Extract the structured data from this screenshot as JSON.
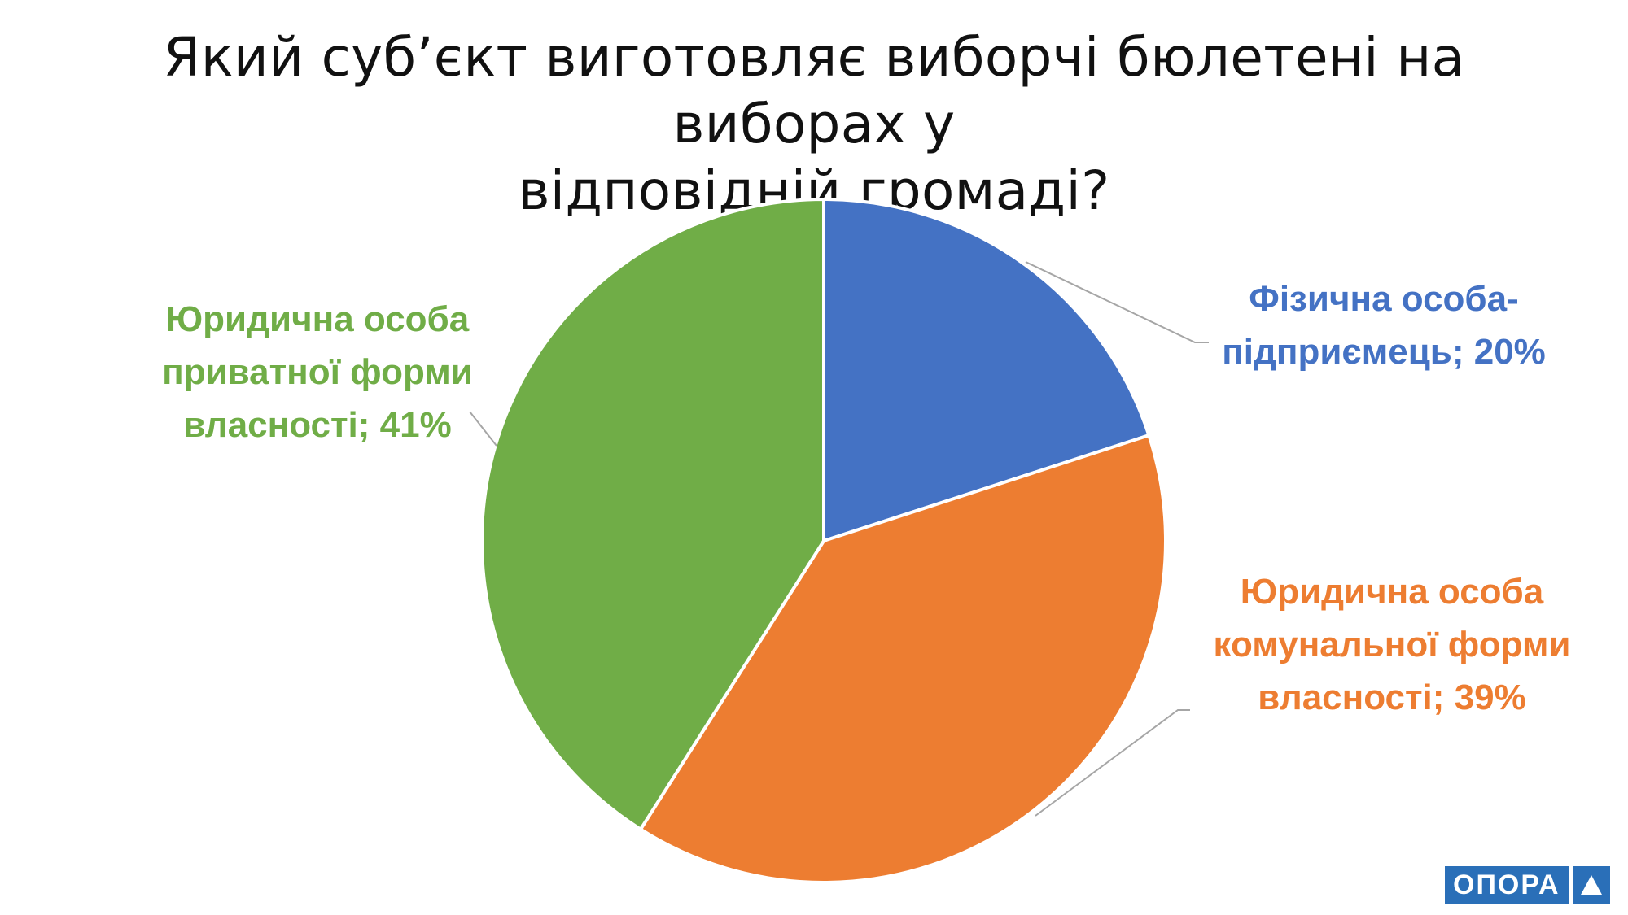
{
  "chart_data": {
    "type": "pie",
    "title_lines": [
      "Який суб’єкт виготовляє виборчі бюлетені на виборах у",
      "відповідній громаді?"
    ],
    "start_angle_deg": 0,
    "direction": "clockwise",
    "slices": [
      {
        "label_lines": [
          "Фізична особа-",
          "підприємець; 20%"
        ],
        "value": 20,
        "color": "#4472c4"
      },
      {
        "label_lines": [
          "Юридична особа",
          "комунальної форми",
          "власності; 39%"
        ],
        "value": 39,
        "color": "#ed7d31"
      },
      {
        "label_lines": [
          "Юридична особа",
          "приватної форми",
          "власності; 41%"
        ],
        "value": 41,
        "color": "#70ad47"
      }
    ],
    "legend": "none",
    "leader_line_color": "#a6a6a6"
  },
  "logo": {
    "text": "ОПОРА",
    "mark_icon": "triangle-icon"
  }
}
